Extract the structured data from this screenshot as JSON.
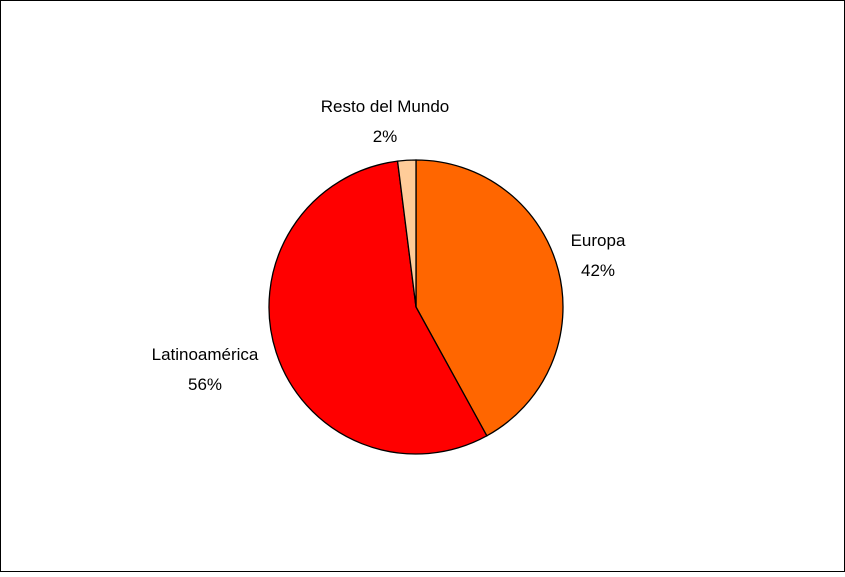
{
  "chart_data": {
    "type": "pie",
    "slices": [
      {
        "name": "Europa",
        "value": 42,
        "label": "42%",
        "color": "#FF6600"
      },
      {
        "name": "Latinoamérica",
        "value": 56,
        "label": "56%",
        "color": "#FF0000"
      },
      {
        "name": "Resto del Mundo",
        "value": 2,
        "label": "2%",
        "color": "#FFCC99"
      }
    ],
    "start_angle_deg": 0,
    "direction": "clockwise",
    "border_color": "#000000",
    "legend": "none"
  }
}
